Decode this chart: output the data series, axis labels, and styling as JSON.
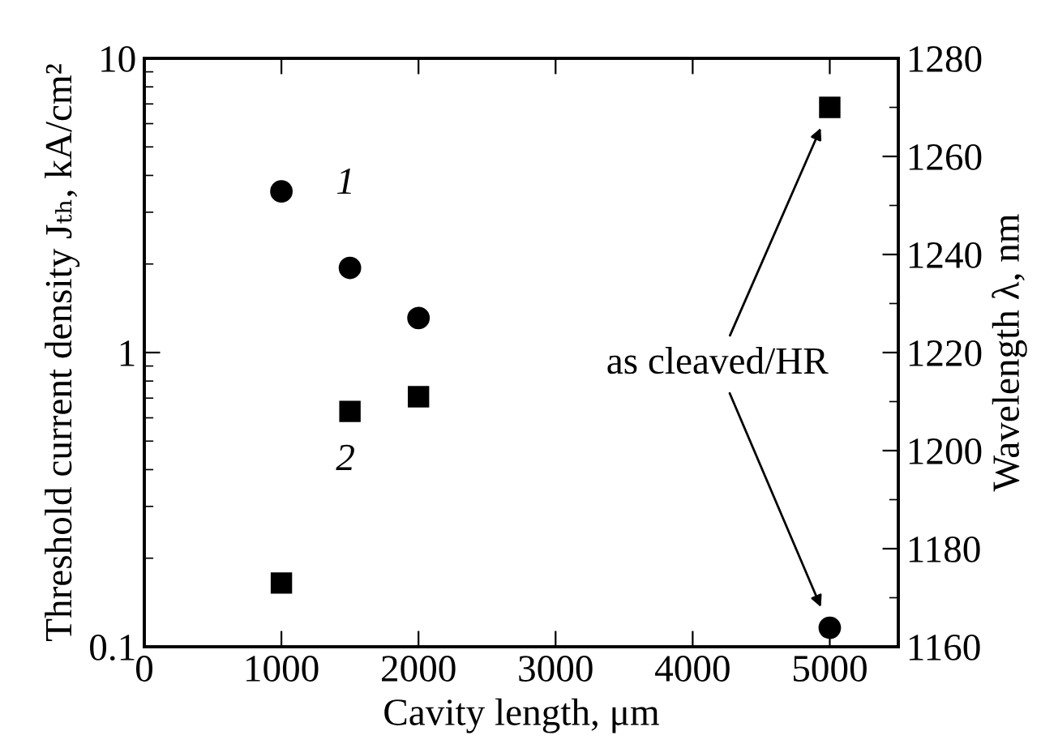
{
  "chart_data": {
    "type": "scatter",
    "xlabel": "Cavity length, μm",
    "ylabel": "Threshold current density Jₜₕ, kA/cm²",
    "y2label": "Wavelength λ, nm",
    "log": "y",
    "grid": false,
    "legend": false,
    "xlim": [
      0,
      5500
    ],
    "xticks": [
      0,
      1000,
      2000,
      3000,
      4000,
      5000
    ],
    "ylim": [
      0.1,
      10
    ],
    "yticks": [
      0.1,
      1,
      10
    ],
    "y2lim": [
      1160,
      1280
    ],
    "y2ticks": [
      1160,
      1180,
      1200,
      1220,
      1240,
      1260,
      1280
    ],
    "series": [
      {
        "name": "1",
        "color": "#000000",
        "marker": "circle",
        "x": [
          1000,
          1500,
          2000,
          5000
        ],
        "values": [
          3.53,
          1.94,
          1.31,
          0.116
        ]
      },
      {
        "name": "2",
        "color": "#000000",
        "marker": "square",
        "axis": "y2",
        "x": [
          1000,
          1500,
          2000,
          5000
        ],
        "values": [
          1173,
          1208,
          1211,
          1270
        ]
      }
    ],
    "annotations": [
      "as cleaved/HR"
    ]
  }
}
